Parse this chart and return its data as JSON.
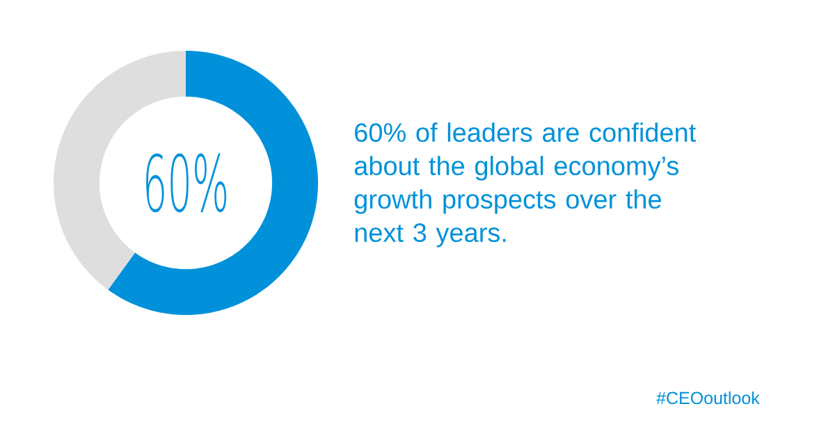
{
  "chart_data": {
    "type": "donut",
    "title": "60% of leaders are confident about the global economy’s growth prospects over the next 3 years.",
    "categories": [
      null,
      null
    ],
    "values": [
      60,
      40
    ],
    "colors": [
      "#0091da",
      "#dedede"
    ],
    "value_labels": [
      "60%",
      null
    ],
    "annotations": [
      "#CEOoutlook"
    ]
  }
}
